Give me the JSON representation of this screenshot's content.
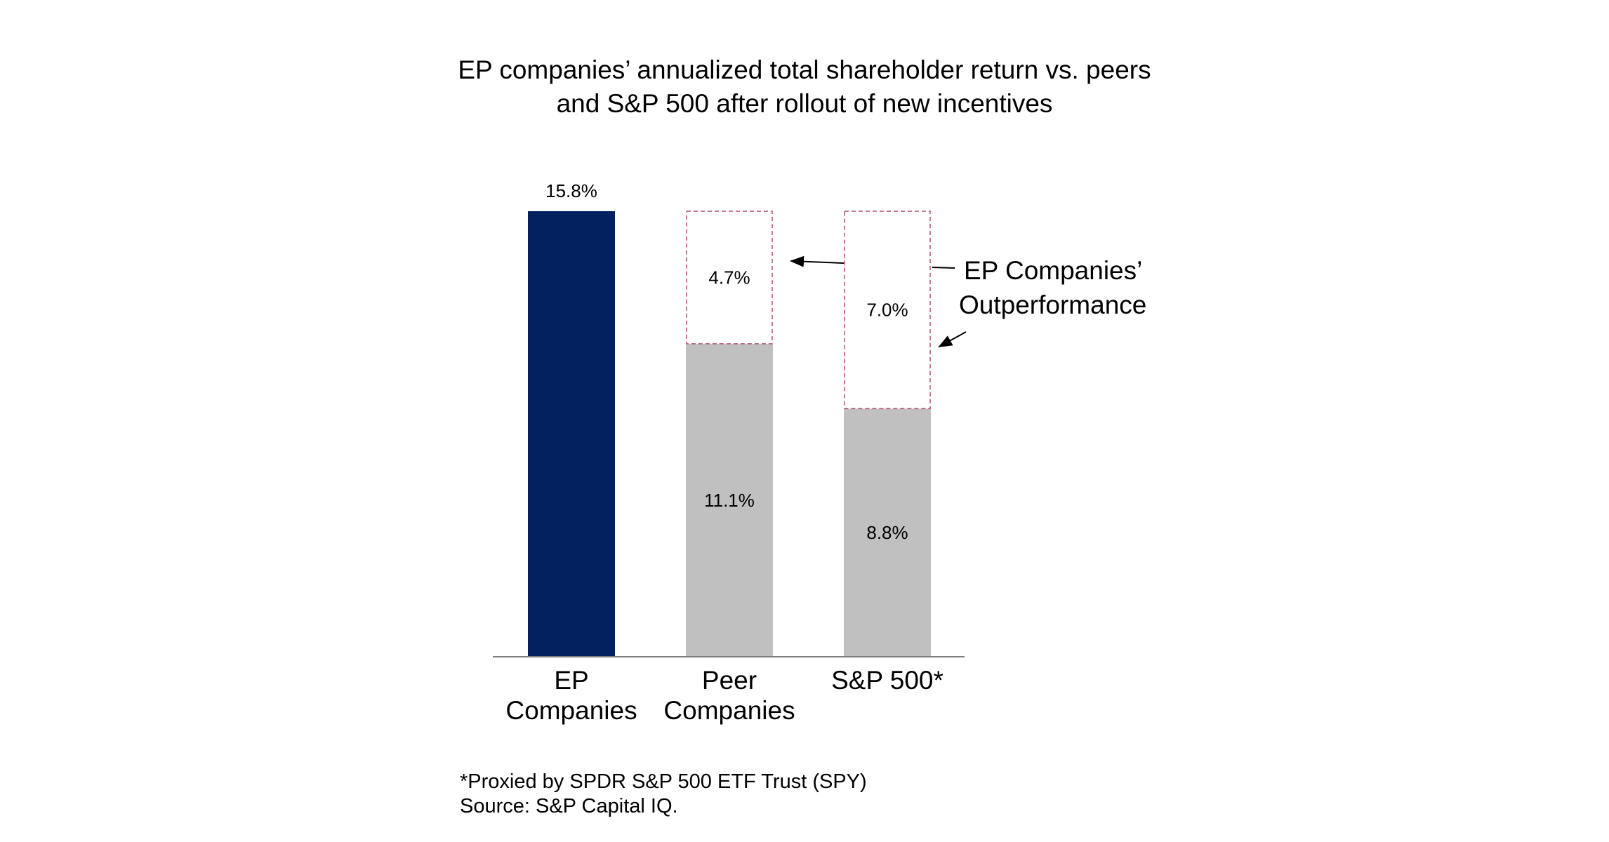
{
  "chart_data": {
    "type": "bar",
    "stacked": true,
    "title_lines": [
      "EP companies’ annualized total shareholder return vs. peers",
      "and S&P 500 after rollout of new incentives"
    ],
    "categories": [
      [
        "EP",
        "Companies"
      ],
      [
        "Peer",
        "Companies"
      ],
      [
        "S&P 500*"
      ]
    ],
    "series": [
      {
        "values": [
          15.8,
          11.1,
          8.8
        ],
        "labels": [
          "15.8%",
          "11.1%",
          "8.8%"
        ],
        "colors": [
          "#03215e",
          "#c0c0c0",
          "#c0c0c0"
        ]
      },
      {
        "values": [
          0,
          4.7,
          7.0
        ],
        "labels": [
          "",
          "4.7%",
          "7.0%"
        ],
        "style": "dashed-outline",
        "color": "#b5506e"
      }
    ],
    "annotation": [
      "EP Companies’",
      "Outperformance"
    ],
    "xlabel": "",
    "ylabel": "",
    "ylim": [
      0,
      15.8
    ],
    "grid": false,
    "legend": "none",
    "footnotes": [
      "*Proxied by SPDR S&P 500 ETF Trust (SPY)",
      "Source: S&P Capital IQ."
    ]
  }
}
